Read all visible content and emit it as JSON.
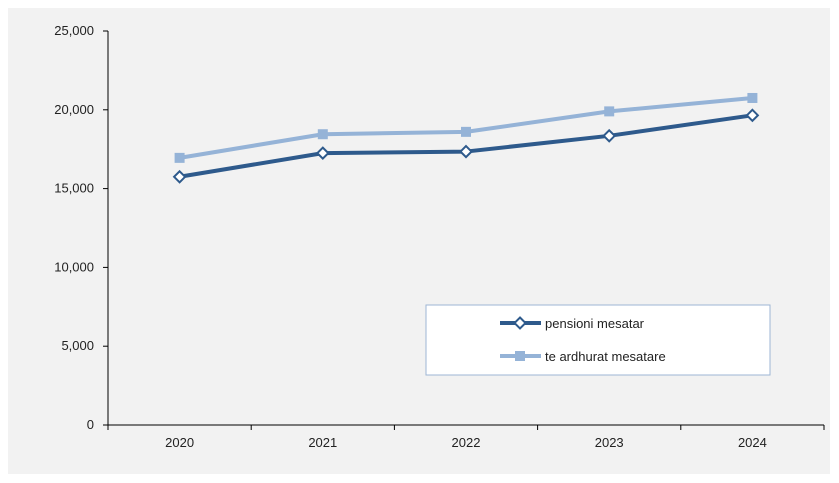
{
  "chart_data": {
    "type": "line",
    "title": "",
    "xlabel": "",
    "ylabel": "",
    "categories": [
      "2020",
      "2021",
      "2022",
      "2023",
      "2024"
    ],
    "ylim": [
      0,
      25000
    ],
    "yticks": [
      0,
      5000,
      10000,
      15000,
      20000,
      25000
    ],
    "ytick_labels": [
      "0",
      "5,000",
      "10,000",
      "15,000",
      "20,000",
      "25,000"
    ],
    "grid": false,
    "legend_position": "lower-right",
    "series": [
      {
        "name": "pensioni mesatar",
        "values": [
          15750,
          17250,
          17350,
          18350,
          19650
        ],
        "color": "#2e5a8c",
        "marker": "diamond-open"
      },
      {
        "name": "te ardhurat mesatare",
        "values": [
          16950,
          18450,
          18600,
          19900,
          20750
        ],
        "color": "#95b3d7",
        "marker": "square"
      }
    ]
  }
}
